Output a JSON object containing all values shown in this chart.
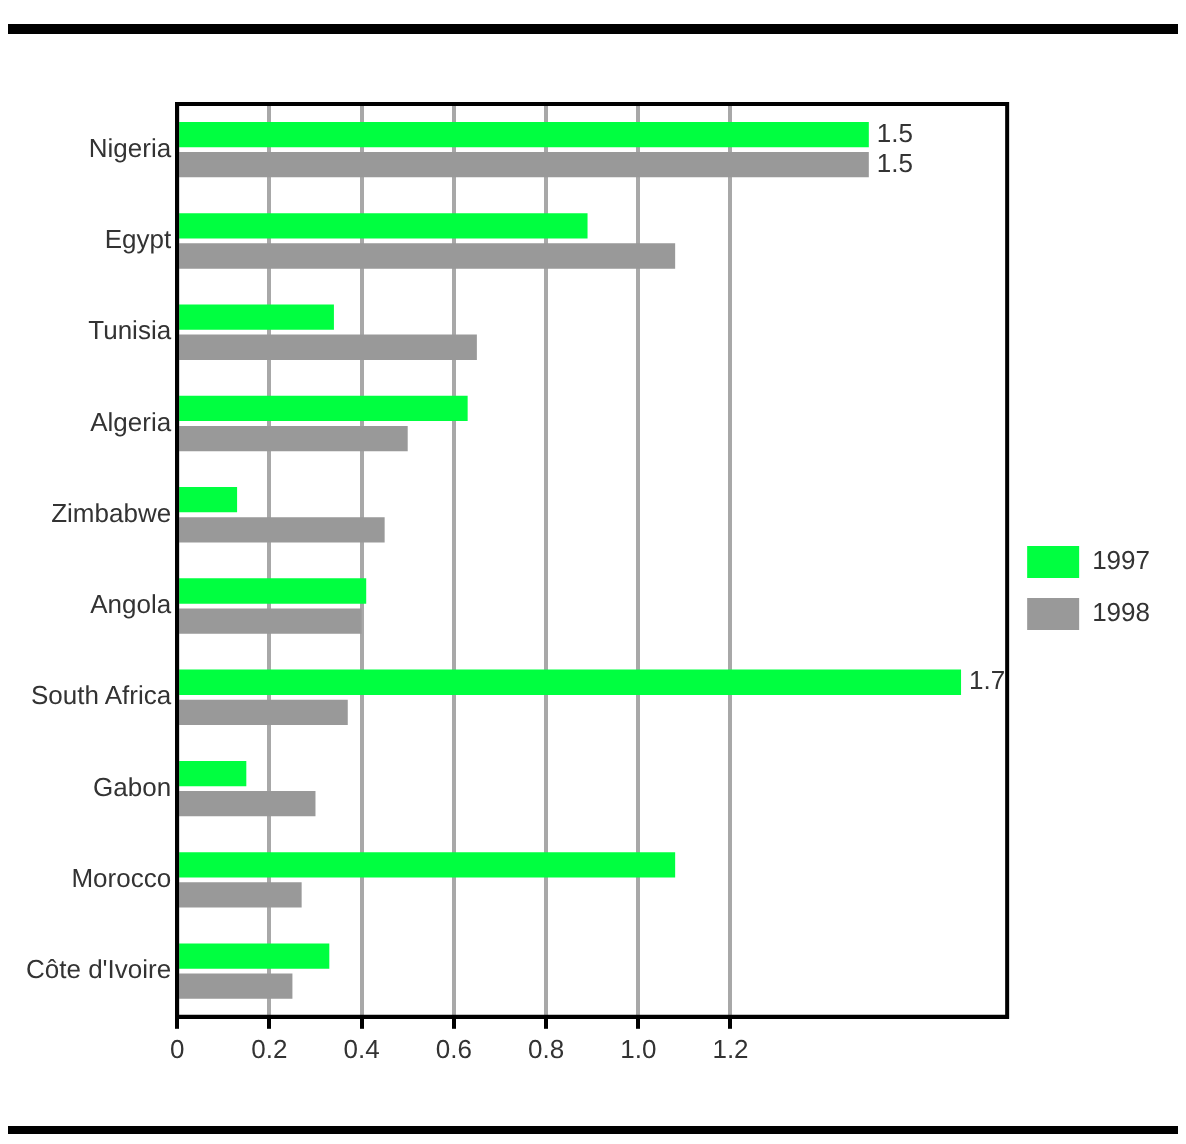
{
  "chart_data": {
    "type": "bar",
    "orientation": "horizontal",
    "categories": [
      "Nigeria",
      "Egypt",
      "Tunisia",
      "Algeria",
      "Zimbabwe",
      "Angola",
      "South Africa",
      "Gabon",
      "Morocco",
      "Côte d'Ivoire"
    ],
    "series": [
      {
        "name": "1997",
        "color": "#00ff40",
        "values": [
          1.5,
          0.89,
          0.34,
          0.63,
          0.13,
          0.41,
          1.7,
          0.15,
          1.08,
          0.33
        ],
        "value_labels": [
          "1.5",
          null,
          null,
          null,
          null,
          null,
          "1.7",
          null,
          null,
          null
        ]
      },
      {
        "name": "1998",
        "color": "#999999",
        "values": [
          1.5,
          1.08,
          0.65,
          0.5,
          0.45,
          0.4,
          0.37,
          0.3,
          0.27,
          0.25
        ],
        "value_labels": [
          "1.5",
          null,
          null,
          null,
          null,
          null,
          null,
          null,
          null,
          null
        ]
      }
    ],
    "xlim": [
      0,
      1.8
    ],
    "xticks": [
      0,
      0.2,
      0.4,
      0.6,
      0.8,
      {
        "value": 1,
        "label": "1.0"
      },
      1.2
    ],
    "grid": "x",
    "legend": "right"
  }
}
